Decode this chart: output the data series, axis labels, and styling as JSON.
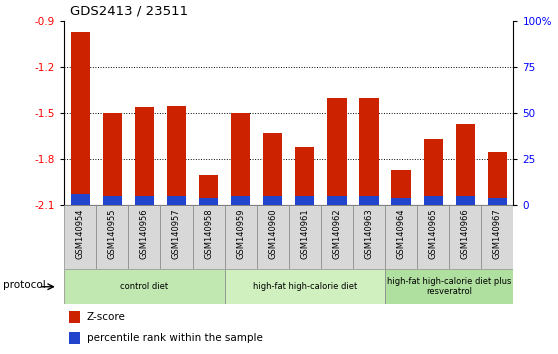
{
  "title": "GDS2413 / 23511",
  "samples": [
    "GSM140954",
    "GSM140955",
    "GSM140956",
    "GSM140957",
    "GSM140958",
    "GSM140959",
    "GSM140960",
    "GSM140961",
    "GSM140962",
    "GSM140963",
    "GSM140964",
    "GSM140965",
    "GSM140966",
    "GSM140967"
  ],
  "zscore": [
    -0.97,
    -1.5,
    -1.46,
    -1.45,
    -1.9,
    -1.5,
    -1.63,
    -1.72,
    -1.4,
    -1.4,
    -1.87,
    -1.67,
    -1.57,
    -1.75
  ],
  "pct_rank_pct": [
    6,
    5,
    5,
    5,
    4,
    5,
    5,
    5,
    5,
    5,
    4,
    5,
    5,
    4
  ],
  "groups": [
    {
      "label": "control diet",
      "start": 0,
      "end": 5
    },
    {
      "label": "high-fat high-calorie diet",
      "start": 5,
      "end": 10
    },
    {
      "label": "high-fat high-calorie diet plus\nresveratrol",
      "start": 10,
      "end": 14
    }
  ],
  "group_colors": [
    "#c0e8b0",
    "#d0f0c0",
    "#b0e0a0"
  ],
  "ylim_left": [
    -2.1,
    -0.9
  ],
  "ylim_right": [
    0,
    100
  ],
  "yticks_left": [
    -2.1,
    -1.8,
    -1.5,
    -1.2,
    -0.9
  ],
  "yticks_right": [
    0,
    25,
    50,
    75,
    100
  ],
  "bar_color_red": "#cc2200",
  "bar_color_blue": "#2244cc",
  "protocol_label": "protocol",
  "legend_zscore": "Z-score",
  "legend_pct": "percentile rank within the sample",
  "bar_width": 0.6
}
